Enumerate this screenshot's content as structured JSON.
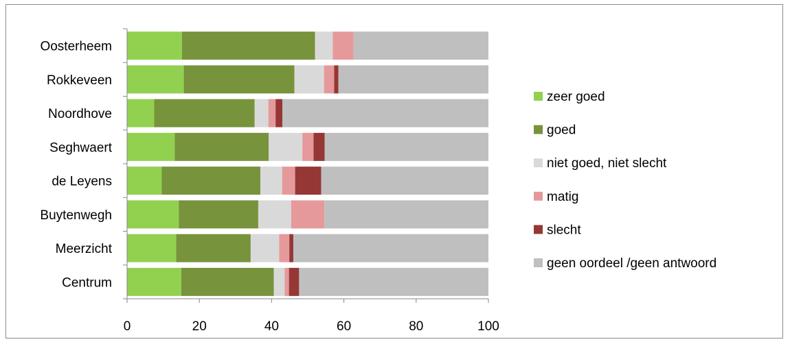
{
  "chart_data": {
    "type": "bar",
    "orientation": "horizontal",
    "stacked": true,
    "categories": [
      "Oosterheem",
      "Rokkeveen",
      "Noordhove",
      "Seghwaert",
      "de Leyens",
      "Buytenwegh",
      "Meerzicht",
      "Centrum"
    ],
    "series": [
      {
        "name": "zeer goed",
        "color": "#92d050",
        "values": [
          15.2,
          15.7,
          7.5,
          13.2,
          9.6,
          14.3,
          13.6,
          15.0
        ]
      },
      {
        "name": "goed",
        "color": "#77933c",
        "values": [
          36.8,
          30.6,
          27.8,
          26.0,
          27.3,
          22.0,
          20.6,
          25.6
        ]
      },
      {
        "name": "niet goed, niet slecht",
        "color": "#d9d9d9",
        "values": [
          4.9,
          8.2,
          3.8,
          9.3,
          6.0,
          9.1,
          7.9,
          3.0
        ]
      },
      {
        "name": "matig",
        "color": "#e6999b",
        "values": [
          5.8,
          2.8,
          2.0,
          3.1,
          3.6,
          9.2,
          2.8,
          1.2
        ]
      },
      {
        "name": "slecht",
        "color": "#953735",
        "values": [
          0.0,
          1.2,
          1.9,
          3.1,
          7.2,
          0.0,
          1.1,
          2.8
        ]
      },
      {
        "name": "geen oordeel /geen antwoord",
        "color": "#bfbfbf",
        "values": [
          37.3,
          41.5,
          57.0,
          45.3,
          46.3,
          45.4,
          54.0,
          52.4
        ]
      }
    ],
    "xlim": [
      0,
      100
    ],
    "xticks": [
      0,
      20,
      40,
      60,
      80,
      100
    ],
    "grid": false,
    "legend_position": "right"
  }
}
